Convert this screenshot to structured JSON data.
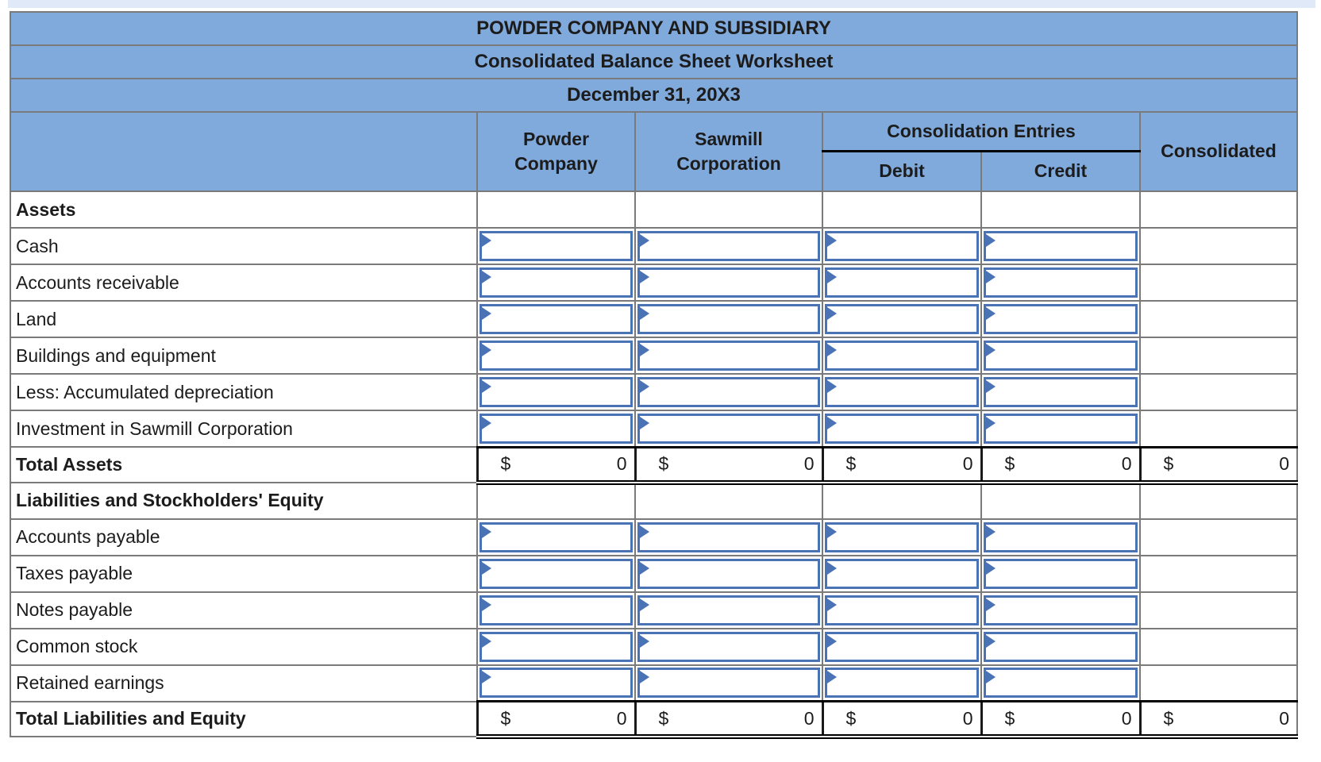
{
  "worksheet": {
    "titles": [
      "POWDER COMPANY AND SUBSIDIARY",
      "Consolidated Balance Sheet Worksheet",
      "December 31, 20X3"
    ],
    "columns": {
      "company1": "Powder\nCompany",
      "company2": "Sawmill\nCorporation",
      "entries_group": "Consolidation Entries",
      "debit": "Debit",
      "credit": "Credit",
      "consolidated": "Consolidated"
    },
    "input_columns": [
      "Powder Company",
      "Sawmill Corporation",
      "Debit",
      "Credit"
    ],
    "sections": [
      {
        "header": "Assets",
        "rows": [
          {
            "label": "Cash"
          },
          {
            "label": "Accounts receivable"
          },
          {
            "label": "Land"
          },
          {
            "label": "Buildings and equipment"
          },
          {
            "label": "Less: Accumulated depreciation"
          },
          {
            "label": "Investment in Sawmill Corporation"
          }
        ],
        "total": {
          "label": "Total Assets",
          "currency": "$",
          "values": [
            "0",
            "0",
            "0",
            "0",
            "0"
          ]
        }
      },
      {
        "header": "Liabilities and Stockholders' Equity",
        "rows": [
          {
            "label": "Accounts payable"
          },
          {
            "label": "Taxes payable"
          },
          {
            "label": "Notes payable"
          },
          {
            "label": "Common stock"
          },
          {
            "label": "Retained earnings"
          }
        ],
        "total": {
          "label": "Total Liabilities and Equity",
          "currency": "$",
          "values": [
            "0",
            "0",
            "0",
            "0",
            "0"
          ]
        }
      }
    ],
    "colors": {
      "header_bg": "#80a9dc",
      "grid_border": "#7a7a7a",
      "input_border": "#4a73b5",
      "total_rule": "#000000",
      "top_strip": "#dfe9f8"
    }
  }
}
